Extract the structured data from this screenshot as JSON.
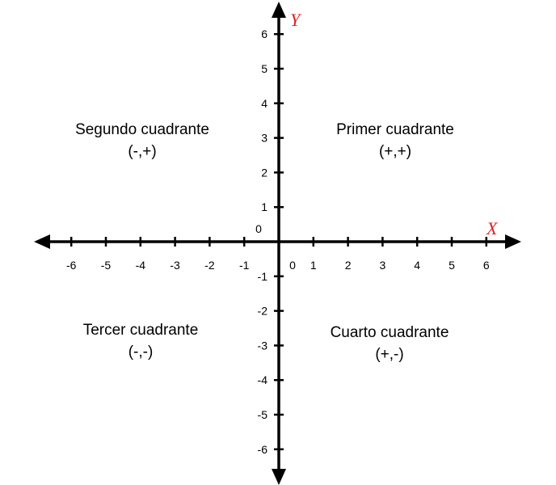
{
  "axes": {
    "x_name": "X",
    "y_name": "Y",
    "name_color": "#e02020",
    "line_color": "#000000",
    "x_ticks": [
      -6,
      -5,
      -4,
      -3,
      -2,
      -1,
      1,
      2,
      3,
      4,
      5,
      6
    ],
    "y_ticks": [
      -6,
      -5,
      -4,
      -3,
      -2,
      -1,
      1,
      2,
      3,
      4,
      5,
      6
    ],
    "x_origin_label": "0",
    "y_origin_label": "0"
  },
  "quadrants": {
    "first": {
      "title": "Primer cuadrante",
      "sign": "(+,+)"
    },
    "second": {
      "title": "Segundo cuadrante",
      "sign": "(-,+)"
    },
    "third": {
      "title": "Tercer cuadrante",
      "sign": "(-,-)"
    },
    "fourth": {
      "title": "Cuarto cuadrante",
      "sign": "(+,-)"
    }
  }
}
